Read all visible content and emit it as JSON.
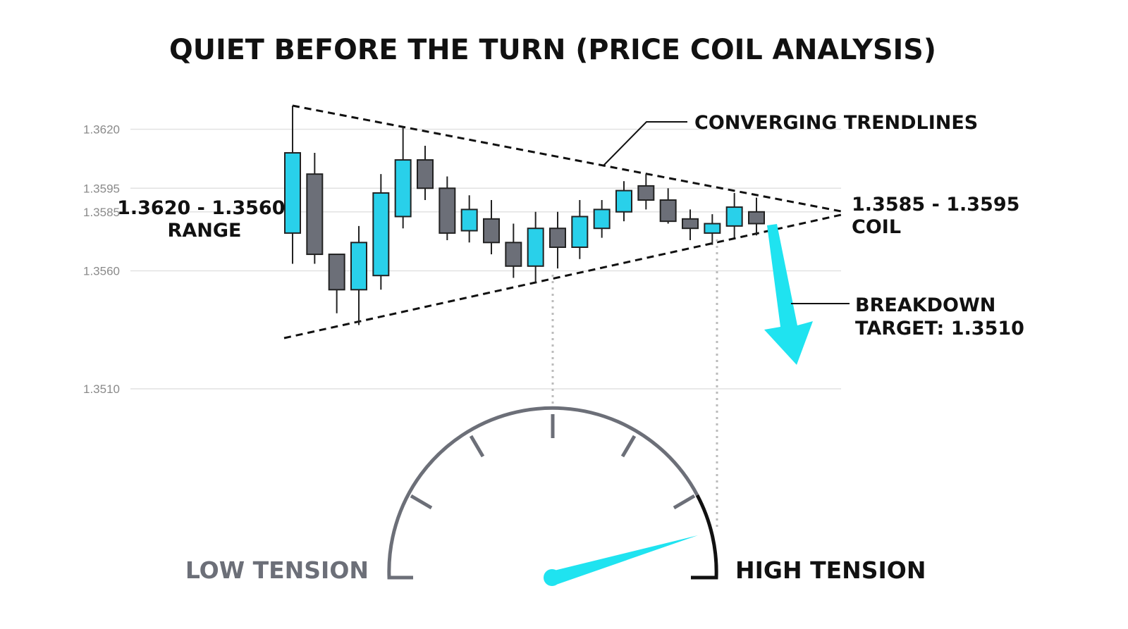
{
  "chart_data": {
    "type": "candlestick",
    "title": "QUIET BEFORE THE TURN (PRICE COIL ANALYSIS)",
    "open": [
      1.3576,
      1.3601,
      1.3567,
      1.3552,
      1.3558,
      1.3583,
      1.3607,
      1.3595,
      1.3577,
      1.3582,
      1.3572,
      1.3562,
      1.3578,
      1.357,
      1.3578,
      1.3585,
      1.3596,
      1.359,
      1.3582,
      1.3576,
      1.3579,
      1.3585
    ],
    "high": [
      1.363,
      1.361,
      1.3567,
      1.3579,
      1.3601,
      1.3621,
      1.3613,
      1.36,
      1.3592,
      1.359,
      1.358,
      1.3585,
      1.3585,
      1.359,
      1.359,
      1.3598,
      1.3601,
      1.3595,
      1.3586,
      1.3584,
      1.3593,
      1.3591
    ],
    "low": [
      1.3563,
      1.3563,
      1.3542,
      1.3537,
      1.3552,
      1.3578,
      1.359,
      1.3573,
      1.3572,
      1.3567,
      1.3557,
      1.3555,
      1.3561,
      1.3565,
      1.3574,
      1.3581,
      1.3586,
      1.358,
      1.3573,
      1.3571,
      1.3574,
      1.3575
    ],
    "close": [
      1.361,
      1.3567,
      1.3552,
      1.3572,
      1.3593,
      1.3607,
      1.3595,
      1.3576,
      1.3586,
      1.3572,
      1.3562,
      1.3578,
      1.357,
      1.3583,
      1.3586,
      1.3594,
      1.359,
      1.3581,
      1.3578,
      1.358,
      1.3587,
      1.358
    ],
    "up_color": "#29d0ea",
    "down_color": "#6c6f78",
    "ylim": [
      1.3505,
      1.363
    ],
    "yticks": [
      {
        "value": 1.362,
        "label": "1.3620"
      },
      1.3595,
      1.3585,
      {
        "value": 1.356,
        "label": "1.3560"
      },
      {
        "value": 1.351,
        "label": "1.3510"
      }
    ],
    "grid": true,
    "annotations": {
      "trendlines": "CONVERGING TRENDLINES",
      "range": [
        "1.3620 - 1.3560",
        "RANGE"
      ],
      "coil": [
        "1.3585 - 1.3595",
        "COIL"
      ],
      "breakdown": [
        "BREAKDOWN",
        "TARGET: 1.3510"
      ],
      "low_tension": "LOW TENSION",
      "high_tension": "HIGH TENSION"
    }
  }
}
